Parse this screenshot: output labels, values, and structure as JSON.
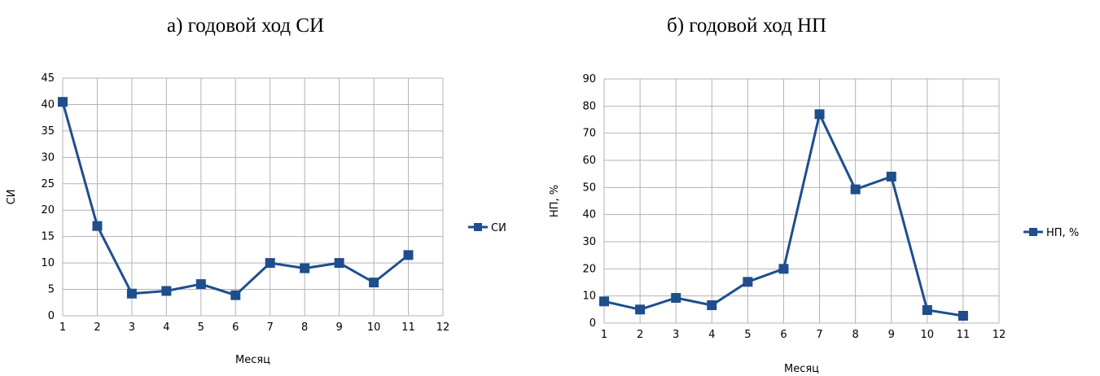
{
  "chart_data": [
    {
      "type": "line",
      "title": "а) годовой ход СИ",
      "xlabel": "Месяц",
      "ylabel": "СИ",
      "xlim": [
        1,
        12
      ],
      "ylim": [
        0,
        45
      ],
      "x_ticks": [
        "1",
        "2",
        "3",
        "4",
        "5",
        "6",
        "7",
        "8",
        "9",
        "10",
        "11",
        "12"
      ],
      "y_ticks": [
        "0",
        "5",
        "10",
        "15",
        "20",
        "25",
        "30",
        "35",
        "40",
        "45"
      ],
      "grid": true,
      "legend": "right",
      "color": "#1f4e8c",
      "series": [
        {
          "name": "СИ",
          "x": [
            1,
            2,
            3,
            4,
            5,
            6,
            7,
            8,
            9,
            10,
            11
          ],
          "values": [
            40.5,
            17,
            4.2,
            4.7,
            6,
            3.9,
            10,
            9,
            10,
            6.3,
            11.5
          ]
        }
      ]
    },
    {
      "type": "line",
      "title": "б) годовой ход НП",
      "xlabel": "Месяц",
      "ylabel": "НП, %",
      "xlim": [
        1,
        12
      ],
      "ylim": [
        0,
        90
      ],
      "x_ticks": [
        "1",
        "2",
        "3",
        "4",
        "5",
        "6",
        "7",
        "8",
        "9",
        "10",
        "11",
        "12"
      ],
      "y_ticks": [
        "0",
        "10",
        "20",
        "30",
        "40",
        "50",
        "60",
        "70",
        "80",
        "90"
      ],
      "grid": true,
      "legend": "right",
      "color": "#1f4e8c",
      "series": [
        {
          "name": "НП, %",
          "x": [
            1,
            2,
            3,
            4,
            5,
            6,
            7,
            8,
            9,
            10,
            11
          ],
          "values": [
            8,
            5,
            9.3,
            6.6,
            15.2,
            20,
            77,
            49.3,
            54,
            4.8,
            2.7
          ]
        }
      ]
    }
  ]
}
